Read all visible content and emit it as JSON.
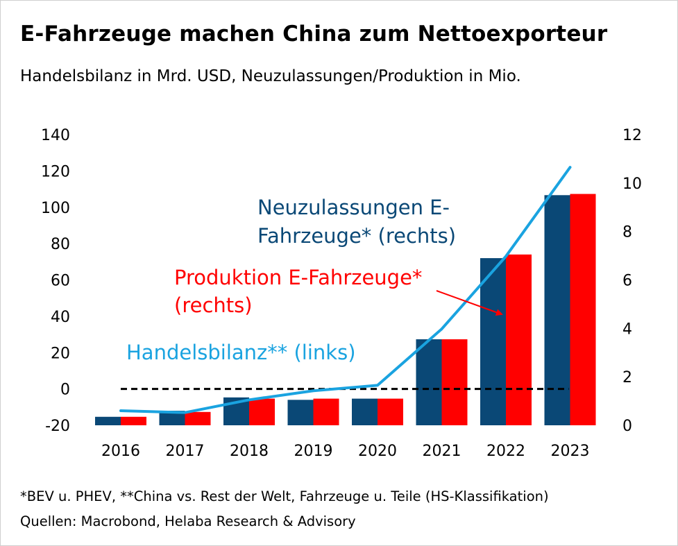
{
  "colors": {
    "neuzulassungen": "#0a4876",
    "produktion": "#ff0000",
    "handelsbilanz": "#1aa3e0",
    "zero_line": "#000000",
    "text": "#000000"
  },
  "chart_data": {
    "type": "bar",
    "title": "E-Fahrzeuge machen China zum Nettoexporteur",
    "subtitle": "Handelsbilanz in Mrd. USD, Neuzulassungen/Produktion in Mio.",
    "categories": [
      "2016",
      "2017",
      "2018",
      "2019",
      "2020",
      "2021",
      "2022",
      "2023"
    ],
    "left_axis": {
      "ylim": [
        -20,
        140
      ],
      "ticks": [
        -20,
        0,
        20,
        40,
        60,
        80,
        100,
        120,
        140
      ]
    },
    "right_axis": {
      "ylim": [
        0,
        12
      ],
      "ticks": [
        0,
        2,
        4,
        6,
        8,
        10,
        12
      ]
    },
    "series": [
      {
        "key": "neuzulassungen",
        "type": "bar",
        "axis": "right",
        "values": [
          0.35,
          0.6,
          1.15,
          1.05,
          1.1,
          3.55,
          6.9,
          9.5
        ]
      },
      {
        "key": "produktion",
        "type": "bar",
        "axis": "right",
        "values": [
          0.35,
          0.55,
          1.1,
          1.1,
          1.1,
          3.55,
          7.05,
          9.55
        ]
      },
      {
        "key": "handelsbilanz",
        "type": "line",
        "axis": "left",
        "values": [
          -12,
          -13,
          -6,
          -1,
          2,
          33,
          73,
          122
        ]
      }
    ],
    "zero_line": {
      "axis": "left",
      "value": 0,
      "style": "dashed"
    },
    "annotations": {
      "neuzulassungen": [
        "Neuzulassungen E-",
        "Fahrzeuge* (rechts)"
      ],
      "produktion": [
        "Produktion E-Fahrzeuge*",
        "(rechts)"
      ],
      "handelsbilanz": [
        "Handelsbilanz** (links)"
      ]
    },
    "legend": "none",
    "grid": false
  },
  "footnotes": [
    "*BEV u. PHEV, **China vs. Rest der Welt, Fahrzeuge u. Teile (HS-Klassifikation)",
    "Quellen: Macrobond, Helaba Research & Advisory"
  ]
}
